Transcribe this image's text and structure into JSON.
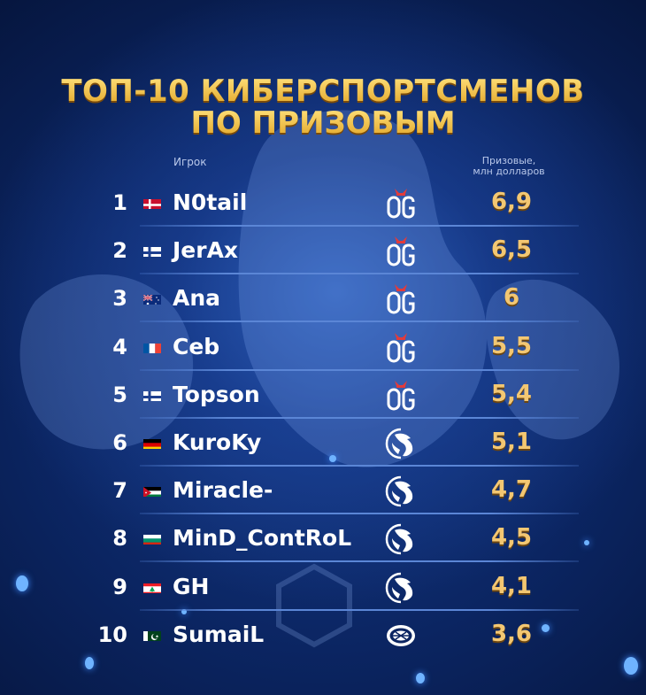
{
  "title": {
    "line1": "ТОП-10 КИБЕРСПОРТСМЕНОВ",
    "line2": "ПО ПРИЗОВЫМ"
  },
  "headers": {
    "player": "Игрок",
    "prize_line1": "Призовые,",
    "prize_line2": "млн долларов"
  },
  "chart_data": {
    "type": "table",
    "title": "ТОП-10 КИБЕРСПОРТСМЕНОВ ПО ПРИЗОВЫМ",
    "columns": [
      "Игрок",
      "Призовые, млн долларов"
    ],
    "rows": [
      {
        "rank": "1",
        "flag": "denmark",
        "player": "N0tail",
        "team": "og-logo",
        "prize": "6,9",
        "value": 6.9
      },
      {
        "rank": "2",
        "flag": "finland",
        "player": "JerAx",
        "team": "og-logo",
        "prize": "6,5",
        "value": 6.5
      },
      {
        "rank": "3",
        "flag": "australia",
        "player": "Ana",
        "team": "og-logo",
        "prize": "6",
        "value": 6
      },
      {
        "rank": "4",
        "flag": "france",
        "player": "Ceb",
        "team": "og-logo",
        "prize": "5,5",
        "value": 5.5
      },
      {
        "rank": "5",
        "flag": "finland",
        "player": "Topson",
        "team": "og-logo",
        "prize": "5,4",
        "value": 5.4
      },
      {
        "rank": "6",
        "flag": "germany",
        "player": "KuroKy",
        "team": "liquid-logo",
        "prize": "5,1",
        "value": 5.1
      },
      {
        "rank": "7",
        "flag": "jordan",
        "player": "Miracle-",
        "team": "liquid-logo",
        "prize": "4,7",
        "value": 4.7
      },
      {
        "rank": "8",
        "flag": "bulgaria",
        "player": "MinD_ContRoL",
        "team": "liquid-logo",
        "prize": "4,5",
        "value": 4.5
      },
      {
        "rank": "9",
        "flag": "lebanon",
        "player": "GH",
        "team": "liquid-logo",
        "prize": "4,1",
        "value": 4.1
      },
      {
        "rank": "10",
        "flag": "pakistan",
        "player": "SumaiL",
        "team": "eg-logo",
        "prize": "3,6",
        "value": 3.6
      }
    ]
  },
  "colors": {
    "title_gold": "#f3c54b",
    "prize_gold": "#f3c772",
    "separator": "#5b86d6"
  }
}
